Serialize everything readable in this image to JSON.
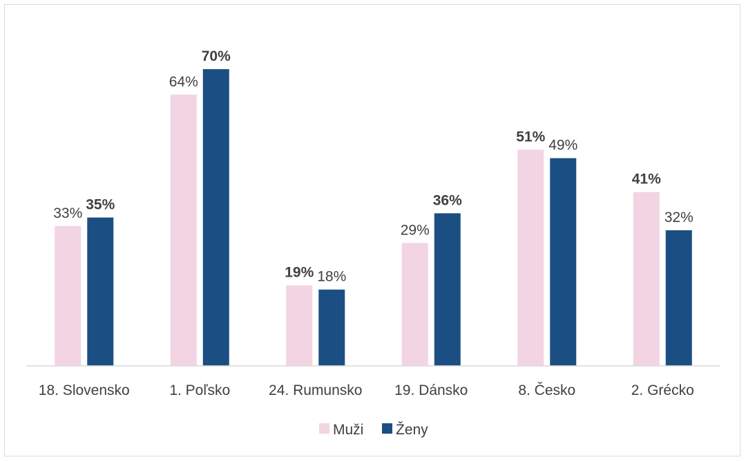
{
  "chart_data": {
    "type": "bar",
    "categories": [
      "18. Slovensko",
      "1. Poľsko",
      "24. Rumunsko",
      "19. Dánsko",
      "8. Česko",
      "2. Grécko"
    ],
    "series": [
      {
        "name": "Muži",
        "color": "#f2d4e2",
        "values": [
          33,
          64,
          19,
          29,
          51,
          41
        ],
        "labels": [
          "33%",
          "64%",
          "19%",
          "29%",
          "51%",
          "41%"
        ],
        "bold": [
          false,
          false,
          true,
          false,
          true,
          true
        ]
      },
      {
        "name": "Ženy",
        "color": "#1b4f83",
        "values": [
          35,
          70,
          18,
          36,
          49,
          32
        ],
        "labels": [
          "35%",
          "70%",
          "18%",
          "36%",
          "49%",
          "32%"
        ],
        "bold": [
          true,
          true,
          false,
          true,
          false,
          false
        ]
      }
    ],
    "ylim": [
      0,
      70
    ],
    "legend_position": "bottom",
    "grid": false,
    "axis_color": "#d9d9d9"
  }
}
